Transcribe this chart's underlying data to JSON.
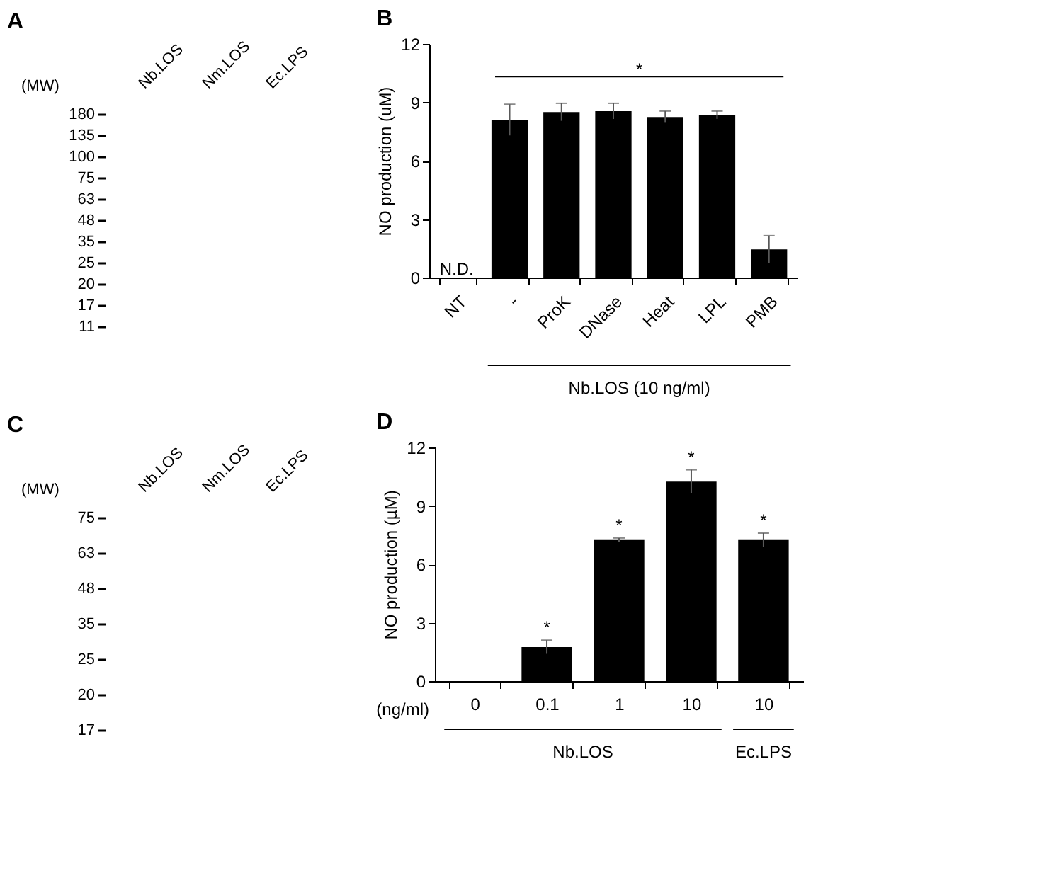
{
  "chart_data": [
    {
      "type": "other",
      "title": "A",
      "ylabel": "(MW)",
      "categories": [
        "Nb.LOS",
        "Nm.LOS",
        "Ec.LPS"
      ],
      "annotations": [
        "180",
        "135",
        "100",
        "75",
        "63",
        "48",
        "35",
        "25",
        "20",
        "17",
        "11"
      ]
    },
    {
      "type": "bar",
      "title": "B",
      "categories": [
        "NT",
        "-",
        "ProK",
        "DNase",
        "Heat",
        "LPL",
        "PMB"
      ],
      "values": [
        null,
        8.1,
        8.5,
        8.55,
        8.25,
        8.35,
        1.45
      ],
      "errors": [
        null,
        0.8,
        0.45,
        0.4,
        0.3,
        0.2,
        0.7
      ],
      "color": "#000000",
      "ylim": [
        0,
        12
      ],
      "yticks": [
        0,
        3,
        6,
        9,
        12
      ],
      "ylabel": "NO production (uM)",
      "annotations": [
        "N.D.",
        "*",
        "Nb.LOS (10 ng/ml)"
      ]
    },
    {
      "type": "other",
      "title": "C",
      "ylabel": "(MW)",
      "categories": [
        "Nb.LOS",
        "Nm.LOS",
        "Ec.LPS"
      ],
      "annotations": [
        "75",
        "63",
        "48",
        "35",
        "25",
        "20",
        "17"
      ]
    },
    {
      "type": "bar",
      "title": "D",
      "categories": [
        "0",
        "0.1",
        "1",
        "10",
        "10"
      ],
      "values": [
        0,
        1.75,
        7.25,
        10.25,
        7.25
      ],
      "errors": [
        null,
        0.35,
        0.1,
        0.6,
        0.35
      ],
      "value_labels": [
        null,
        "*",
        "*",
        "*",
        "*"
      ],
      "color": "#000000",
      "ylim": [
        0,
        12
      ],
      "yticks": [
        0,
        3,
        6,
        9,
        12
      ],
      "ylabel": "NO production (µM)",
      "annotations": [
        "(ng/ml)",
        "Nb.LOS",
        "Ec.LPS"
      ]
    }
  ]
}
